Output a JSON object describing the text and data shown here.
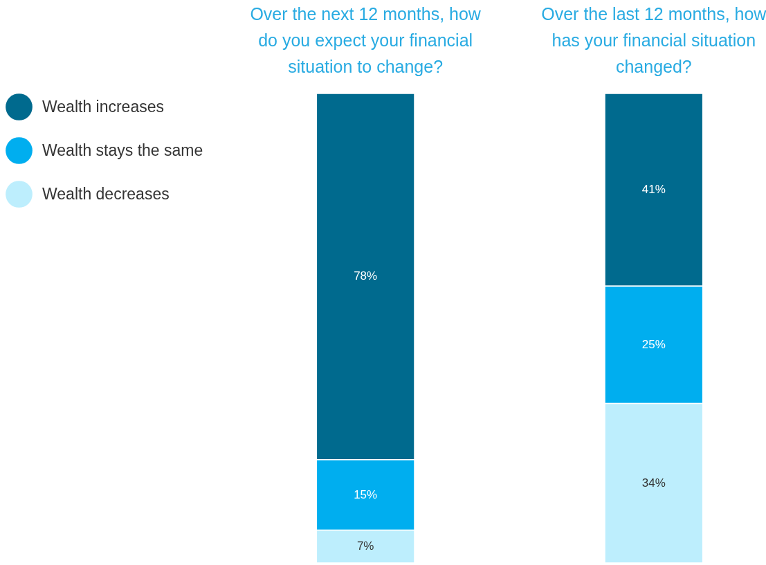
{
  "chart_data": {
    "type": "bar",
    "stacked": true,
    "legend": "left",
    "categories": [
      "Over the next 12 months, how do you expect your financial situation to change?",
      "Over the last 12 months, how has your financial situation changed?"
    ],
    "series": [
      {
        "name": "Wealth decreases",
        "color": "#bdeefd",
        "values": [
          7,
          34
        ],
        "value_labels": [
          "7%",
          "34%"
        ]
      },
      {
        "name": "Wealth stays the same",
        "color": "#00aeef",
        "values": [
          15,
          25
        ],
        "value_labels": [
          "15%",
          "25%"
        ]
      },
      {
        "name": "Wealth increases",
        "color": "#006a8e",
        "values": [
          78,
          41
        ],
        "value_labels": [
          "78%",
          "41%"
        ]
      }
    ]
  }
}
